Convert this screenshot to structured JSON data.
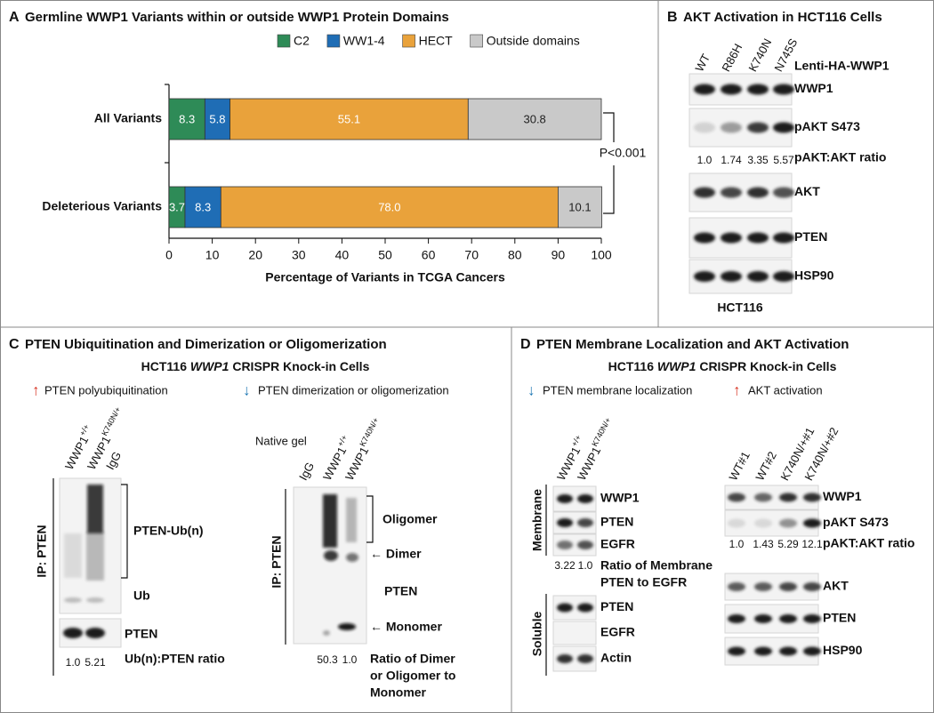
{
  "chart_data": {
    "type": "bar",
    "orientation": "horizontal",
    "stacked": true,
    "label": "A",
    "title": "Germline WWP1 Variants within or outside WWP1 Protein Domains",
    "categories": [
      "All Variants",
      "Deleterious Variants"
    ],
    "series": [
      {
        "name": "C2",
        "color": "#2e8b57",
        "values": [
          8.3,
          3.7
        ]
      },
      {
        "name": "WW1-4",
        "color": "#1f6db5",
        "values": [
          5.8,
          8.3
        ]
      },
      {
        "name": "HECT",
        "color": "#e9a23b",
        "values": [
          55.1,
          78.0
        ],
        "value_labels": [
          "55.1",
          "78.0"
        ]
      },
      {
        "name": "Outside domains",
        "color": "#c9c9c9",
        "values": [
          30.8,
          10.1
        ]
      }
    ],
    "xlim": [
      0,
      100
    ],
    "xticks": [
      0,
      10,
      20,
      30,
      40,
      50,
      60,
      70,
      80,
      90,
      100
    ],
    "xlabel": "Percentage of Variants in TCGA Cancers",
    "annotation": "P<0.001",
    "legend": "top"
  },
  "panel_b": {
    "label": "B",
    "title": "AKT Activation in HCT116 Cells",
    "construct": "Lenti-HA-WWP1",
    "lanes": [
      "WT",
      "R86H",
      "K740N",
      "N745S"
    ],
    "rows": [
      "WWP1",
      "pAKT S473",
      "AKT",
      "PTEN",
      "HSP90"
    ],
    "ratio": {
      "label": "pAKT:AKT ratio",
      "values": [
        "1.0",
        "1.74",
        "3.35",
        "5.57"
      ]
    },
    "cell_line": "HCT116"
  },
  "panel_c": {
    "label": "C",
    "title": "PTEN Ubiquitination and Dimerization or Oligomerization",
    "subtitle": {
      "prefix": "HCT116",
      "gene": "WWP1",
      "suffix": "CRISPR Knock-in Cells"
    },
    "findings": [
      {
        "arrow": "↑",
        "color": "#d7301f",
        "text": "PTEN polyubiquitination"
      },
      {
        "arrow": "↓",
        "color": "#1f78b4",
        "text": "PTEN dimerization or oligomerization"
      }
    ],
    "left_blot": {
      "lanes": [
        {
          "gene": "WWP1",
          "genotype": "+/+"
        },
        {
          "gene": "WWP1",
          "genotype": "K740N/+"
        },
        {
          "gene": "IgG"
        }
      ],
      "ip": "IP: PTEN",
      "bands": [
        "PTEN-Ub(n)",
        "Ub",
        "PTEN"
      ],
      "ratio": {
        "label": "Ub(n):PTEN ratio",
        "values": [
          "1.0",
          "5.21"
        ]
      }
    },
    "right_blot": {
      "gel": "Native gel",
      "lanes": [
        {
          "gene": "IgG"
        },
        {
          "gene": "WWP1",
          "genotype": "+/+"
        },
        {
          "gene": "WWP1",
          "genotype": "K740N/+"
        }
      ],
      "ip": "IP: PTEN",
      "bands": [
        "Oligomer",
        "← Dimer",
        "PTEN",
        "← Monomer"
      ],
      "ratio": {
        "label": [
          "Ratio of Dimer",
          "or Oligomer to",
          "Monomer"
        ],
        "values": [
          "50.3",
          "1.0"
        ]
      }
    }
  },
  "panel_d": {
    "label": "D",
    "title": "PTEN Membrane Localization and AKT Activation",
    "subtitle": {
      "prefix": "HCT116",
      "gene": "WWP1",
      "suffix": "CRISPR Knock-in Cells"
    },
    "findings": [
      {
        "arrow": "↓",
        "color": "#1f78b4",
        "text": "PTEN membrane localization"
      },
      {
        "arrow": "↑",
        "color": "#d7301f",
        "text": "AKT activation"
      }
    ],
    "left_blot": {
      "lanes": [
        {
          "gene": "WWP1",
          "genotype": "+/+"
        },
        {
          "gene": "WWP1",
          "genotype": "K740N/+"
        }
      ],
      "fractions": [
        {
          "name": "Membrane",
          "rows": [
            "WWP1",
            "PTEN",
            "EGFR"
          ]
        },
        {
          "name": "Soluble",
          "rows": [
            "PTEN",
            "EGFR",
            "Actin"
          ]
        }
      ],
      "ratio": {
        "label": [
          "Ratio of Membrane",
          "PTEN to EGFR"
        ],
        "values": [
          "3.22",
          "1.0"
        ]
      }
    },
    "right_blot": {
      "lanes": [
        "WT#1",
        "WT#2",
        "K740N/+#1",
        "K740N/+#2"
      ],
      "rows": [
        "WWP1",
        "pAKT S473",
        "AKT",
        "PTEN",
        "HSP90"
      ],
      "ratio": {
        "label": "pAKT:AKT ratio",
        "values": [
          "1.0",
          "1.43",
          "5.29",
          "12.1"
        ]
      }
    }
  }
}
